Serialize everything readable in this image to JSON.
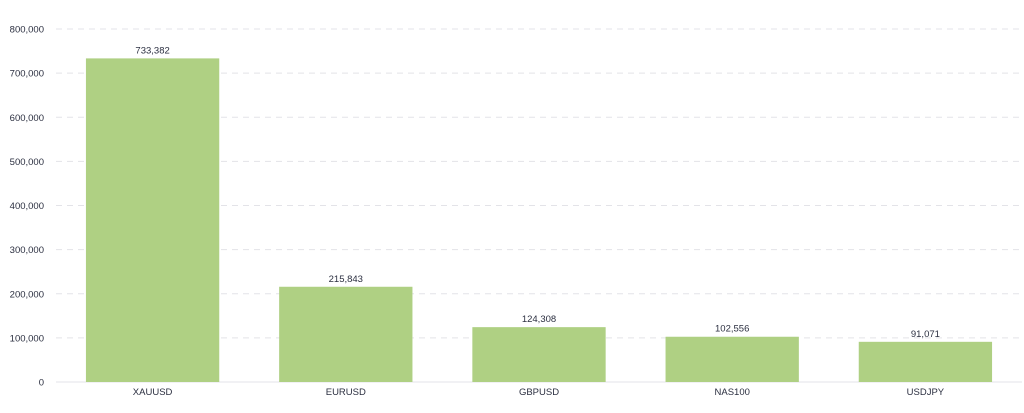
{
  "chart_data": {
    "type": "bar",
    "title": "",
    "xlabel": "",
    "ylabel": "",
    "categories": [
      "XAUUSD",
      "EURUSD",
      "GBPUSD",
      "NAS100",
      "USDJPY"
    ],
    "values": [
      733382,
      215843,
      124308,
      102556,
      91071
    ],
    "value_labels": [
      "733,382",
      "215,843",
      "124,308",
      "102,556",
      "91,071"
    ],
    "ylim": [
      0,
      800000
    ],
    "yticks": [
      0,
      100000,
      200000,
      300000,
      400000,
      500000,
      600000,
      700000,
      800000
    ],
    "ytick_labels": [
      "0",
      "100,000",
      "200,000",
      "300,000",
      "400,000",
      "500,000",
      "600,000",
      "700,000",
      "800,000"
    ],
    "grid": true,
    "legend": "none",
    "colors": {
      "bar": "#afd083",
      "text": "#2b2f40",
      "grid": "#e3e3e8"
    }
  }
}
